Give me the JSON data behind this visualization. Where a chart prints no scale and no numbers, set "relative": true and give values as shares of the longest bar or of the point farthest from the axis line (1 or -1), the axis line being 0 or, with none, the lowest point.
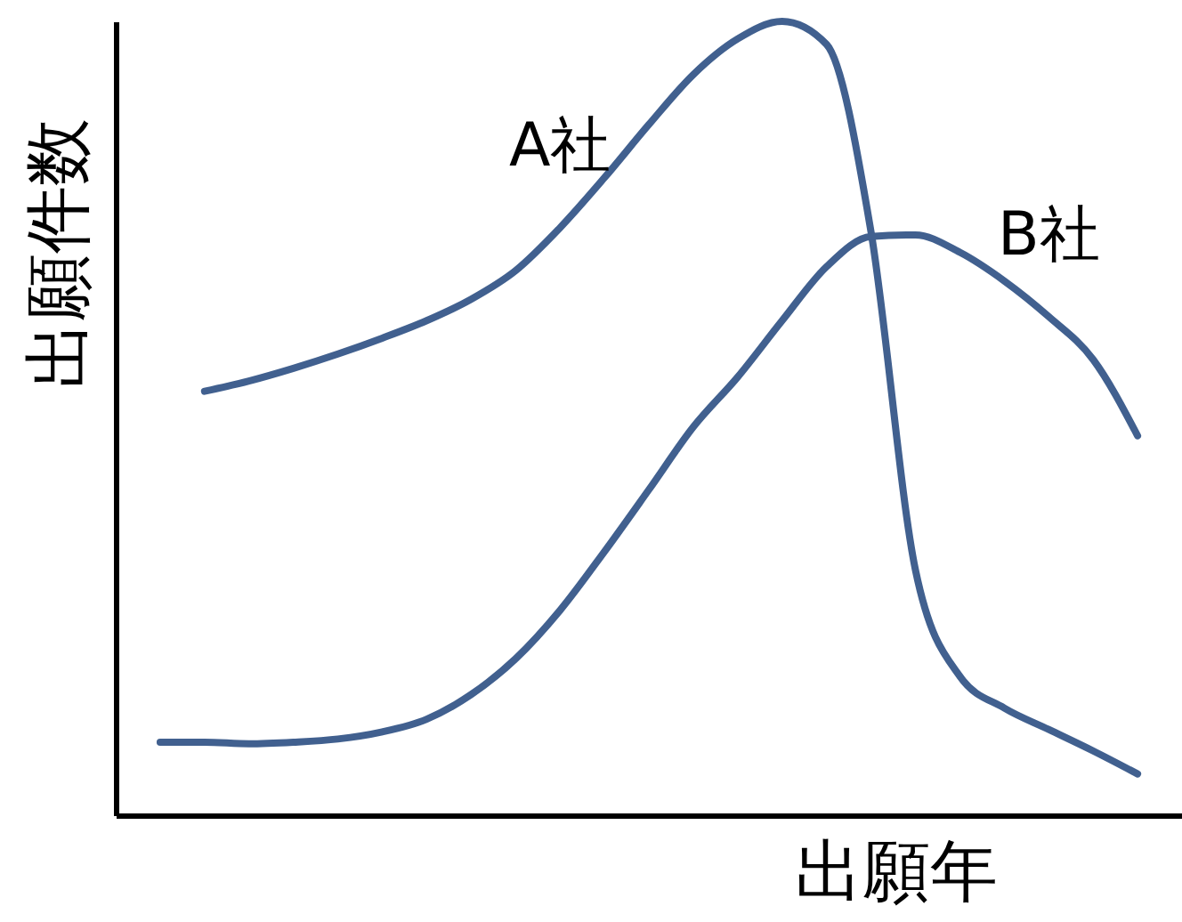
{
  "chart_data": {
    "type": "line",
    "relative": true,
    "xlabel": "出願年",
    "ylabel": "出願件数",
    "grid": false,
    "tick_labels": false,
    "categories": [
      null,
      null,
      null,
      null,
      null,
      null,
      null,
      null,
      null,
      null,
      null,
      null,
      null,
      null,
      null,
      null,
      null,
      null,
      null,
      null,
      null,
      null,
      null
    ],
    "series": [
      {
        "name": "A社",
        "color": "#41608f",
        "values": [
          null,
          0.534,
          0.547,
          0.563,
          0.581,
          0.601,
          0.623,
          0.65,
          0.686,
          0.74,
          0.803,
          0.87,
          0.933,
          0.978,
          1,
          0.971,
          0.735,
          0.309,
          0.175,
          0.135,
          0.108,
          0.081,
          0.052
        ]
      },
      {
        "name": "B社",
        "color": "#41608f",
        "values": [
          0.092,
          0.092,
          0.09,
          0.092,
          0.096,
          0.105,
          0.121,
          0.152,
          0.197,
          0.258,
          0.332,
          0.41,
          0.489,
          0.552,
          0.623,
          0.691,
          0.729,
          0.731,
          0.709,
          0.673,
          0.628,
          0.574,
          0.478
        ]
      }
    ]
  }
}
